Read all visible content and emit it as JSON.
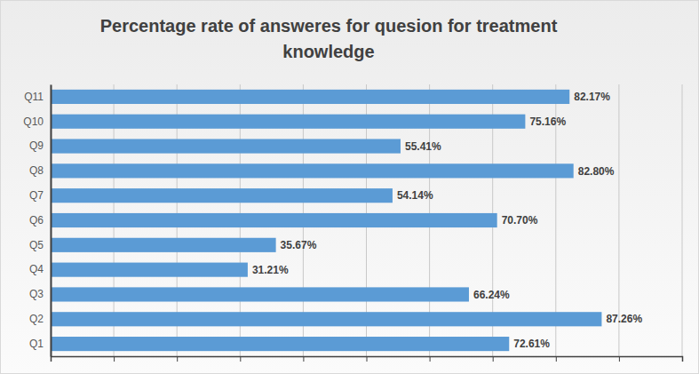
{
  "chart_data": {
    "type": "bar",
    "title": "Percentage rate of answeres for quesion for treatment knowledge",
    "orientation": "horizontal",
    "categories": [
      "Q1",
      "Q2",
      "Q3",
      "Q4",
      "Q5",
      "Q6",
      "Q7",
      "Q8",
      "Q9",
      "Q10",
      "Q11"
    ],
    "values": [
      72.61,
      87.26,
      66.24,
      31.21,
      35.67,
      70.7,
      54.14,
      82.8,
      55.41,
      75.16,
      82.17
    ],
    "value_labels": [
      "72.61%",
      "87.26%",
      "66.24%",
      "31.21%",
      "35.67%",
      "70.70%",
      "54.14%",
      "82.80%",
      "55.41%",
      "75.16%",
      "82.17%"
    ],
    "color": "#5b9bd5",
    "xlim": [
      0,
      100
    ],
    "xticks": [
      0,
      10,
      20,
      30,
      40,
      50,
      60,
      70,
      80,
      90,
      100
    ],
    "grid": true,
    "data_labels": true,
    "tick_labels": "y"
  }
}
